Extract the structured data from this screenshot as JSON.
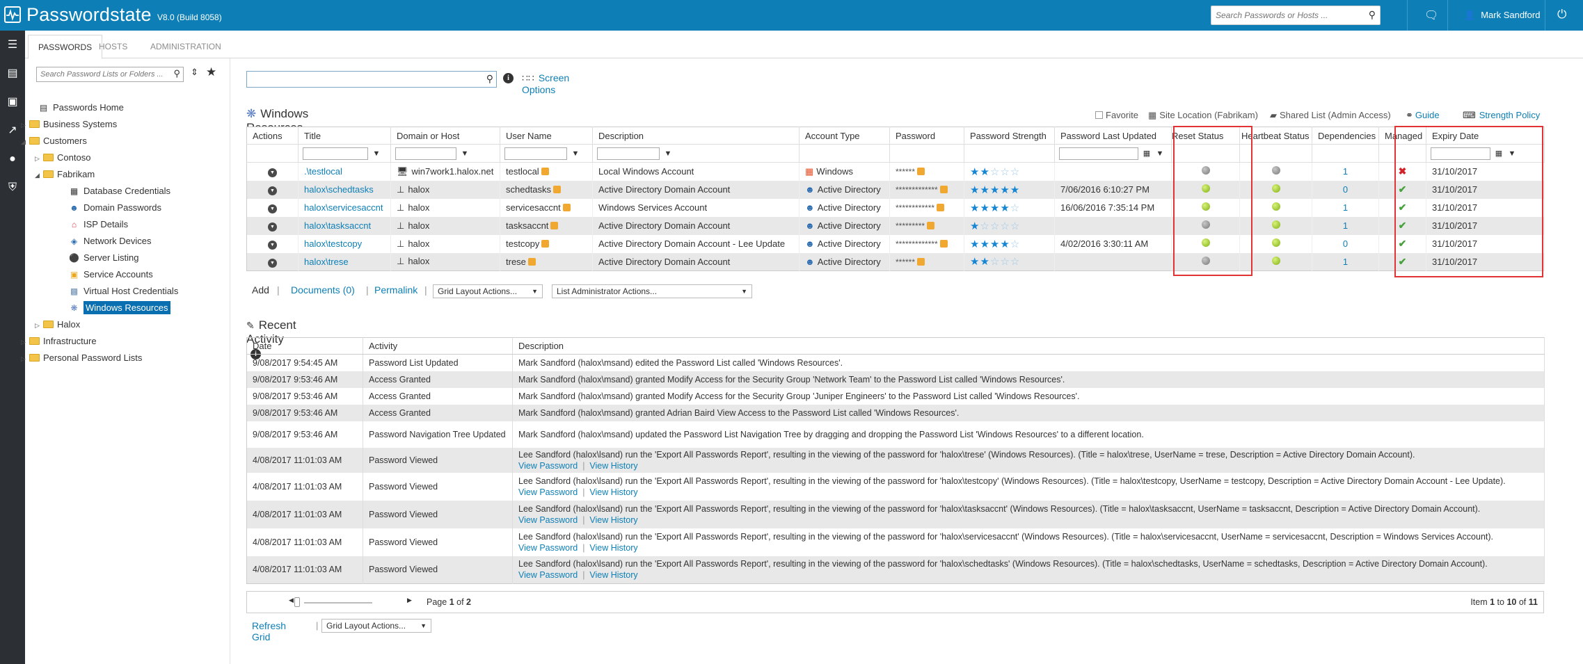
{
  "header": {
    "app_name": "Passwordstate",
    "version": "V8.0 (Build 8058)",
    "search_placeholder": "Search Passwords or Hosts ...",
    "user_name": "Mark Sandford"
  },
  "tabs": [
    "PASSWORDS",
    "HOSTS",
    "ADMINISTRATION"
  ],
  "sidebar": {
    "search_placeholder": "Search Password Lists or Folders ...",
    "tree": [
      {
        "label": "Passwords Home",
        "icon": "home-icon"
      },
      {
        "label": "Business Systems",
        "icon": "folder-icon"
      },
      {
        "label": "Customers",
        "icon": "folder-icon"
      },
      {
        "label": "Contoso",
        "icon": "folder-icon"
      },
      {
        "label": "Fabrikam",
        "icon": "folder-icon"
      },
      {
        "label": "Database Credentials",
        "icon": "database-icon"
      },
      {
        "label": "Domain Passwords",
        "icon": "users-icon"
      },
      {
        "label": "ISP Details",
        "icon": "house-icon"
      },
      {
        "label": "Network Devices",
        "icon": "network-icon"
      },
      {
        "label": "Server Listing",
        "icon": "dell-icon"
      },
      {
        "label": "Service Accounts",
        "icon": "lock-icon"
      },
      {
        "label": "Virtual Host Credentials",
        "icon": "vm-icon"
      },
      {
        "label": "Windows Resources",
        "icon": "windows-resources-icon"
      },
      {
        "label": "Halox",
        "icon": "folder-icon"
      },
      {
        "label": "Infrastructure",
        "icon": "folder-icon"
      },
      {
        "label": "Personal Password Lists",
        "icon": "folder-icon"
      }
    ]
  },
  "main": {
    "screen_options": "Screen Options",
    "list_title": "Windows Resources",
    "favorite": "Favorite",
    "site_location": "Site Location (Fabrikam)",
    "shared_list": "Shared List (Admin Access)",
    "guide": "Guide",
    "strength_policy": "Strength Policy",
    "columns": [
      "Actions",
      "Title",
      "Domain or Host",
      "User Name",
      "Description",
      "Account Type",
      "Password",
      "Password Strength",
      "Password Last Updated",
      "Reset Status",
      "Heartbeat Status",
      "Dependencies",
      "Managed",
      "Expiry Date"
    ],
    "rows": [
      {
        "title": ".\\testlocal",
        "host": "win7work1.halox.net",
        "host_icon": "computer-icon",
        "user": "testlocal",
        "description": "Local Windows Account",
        "account_type": "Windows",
        "account_icon": "windows-icon",
        "password": "******",
        "strength": 2,
        "last_updated": "",
        "reset": "grey",
        "heartbeat": "grey",
        "dependencies": "1",
        "managed": false,
        "expiry": "31/10/2017"
      },
      {
        "title": "halox\\schedtasks",
        "host": "halox",
        "host_icon": "network-icon",
        "user": "schedtasks",
        "description": "Active Directory Domain Account",
        "account_type": "Active Directory",
        "account_icon": "ad-user-icon",
        "password": "*************",
        "strength": 5,
        "last_updated": "7/06/2016 6:10:27 PM",
        "reset": "green",
        "heartbeat": "green",
        "dependencies": "0",
        "managed": true,
        "expiry": "31/10/2017"
      },
      {
        "title": "halox\\servicesaccnt",
        "host": "halox",
        "host_icon": "network-icon",
        "user": "servicesaccnt",
        "description": "Windows Services Account",
        "account_type": "Active Directory",
        "account_icon": "ad-user-icon",
        "password": "************",
        "strength": 4,
        "last_updated": "16/06/2016 7:35:14 PM",
        "reset": "green",
        "heartbeat": "green",
        "dependencies": "1",
        "managed": true,
        "expiry": "31/10/2017"
      },
      {
        "title": "halox\\tasksaccnt",
        "host": "halox",
        "host_icon": "network-icon",
        "user": "tasksaccnt",
        "description": "Active Directory Domain Account",
        "account_type": "Active Directory",
        "account_icon": "ad-user-icon",
        "password": "*********",
        "strength": 1,
        "last_updated": "",
        "reset": "grey",
        "heartbeat": "green",
        "dependencies": "1",
        "managed": true,
        "expiry": "31/10/2017"
      },
      {
        "title": "halox\\testcopy",
        "host": "halox",
        "host_icon": "network-icon",
        "user": "testcopy",
        "description": "Active Directory Domain Account - Lee Update",
        "account_type": "Active Directory",
        "account_icon": "ad-user-icon",
        "password": "*************",
        "strength": 4,
        "last_updated": "4/02/2016 3:30:11 AM",
        "reset": "green",
        "heartbeat": "green",
        "dependencies": "0",
        "managed": true,
        "expiry": "31/10/2017"
      },
      {
        "title": "halox\\trese",
        "host": "halox",
        "host_icon": "network-icon",
        "user": "trese",
        "description": "Active Directory Domain Account",
        "account_type": "Active Directory",
        "account_icon": "ad-user-icon",
        "password": "******",
        "strength": 2,
        "last_updated": "",
        "reset": "grey",
        "heartbeat": "green",
        "dependencies": "1",
        "managed": true,
        "expiry": "31/10/2017"
      }
    ],
    "add": "Add",
    "documents": "Documents (0)",
    "permalink": "Permalink",
    "grid_layout_actions": "Grid Layout Actions...",
    "list_admin_actions": "List Administrator Actions...",
    "colors": {
      "brand": "#0d7fb6",
      "highlight": "#e03333"
    }
  },
  "recent": {
    "title": "Recent Activity",
    "columns": [
      "Date",
      "Activity",
      "Description"
    ],
    "rows": [
      {
        "date": "9/08/2017 9:54:45 AM",
        "activity": "Password List Updated",
        "desc": "Mark Sandford (halox\\msand) edited the Password List called 'Windows Resources'.",
        "links": false
      },
      {
        "date": "9/08/2017 9:53:46 AM",
        "activity": "Access Granted",
        "desc": "Mark Sandford (halox\\msand) granted Modify Access for the Security Group 'Network Team' to the Password List called 'Windows Resources'.",
        "links": false
      },
      {
        "date": "9/08/2017 9:53:46 AM",
        "activity": "Access Granted",
        "desc": "Mark Sandford (halox\\msand) granted Modify Access for the Security Group 'Juniper Engineers' to the Password List called 'Windows Resources'.",
        "links": false
      },
      {
        "date": "9/08/2017 9:53:46 AM",
        "activity": "Access Granted",
        "desc": "Mark Sandford (halox\\msand) granted Adrian Baird View Access to the Password List called 'Windows Resources'.",
        "links": false
      },
      {
        "date": "9/08/2017 9:53:46 AM",
        "activity": "Password Navigation Tree Updated",
        "desc": "Mark Sandford (halox\\msand) updated the Password List Navigation Tree by dragging and dropping the Password List 'Windows Resources' to a different location.",
        "links": false
      },
      {
        "date": "4/08/2017 11:01:03 AM",
        "activity": "Password Viewed",
        "desc": "Lee Sandford (halox\\lsand) run the 'Export All Passwords Report', resulting in the viewing of the password for 'halox\\trese' (Windows Resources). (Title = halox\\trese, UserName = trese, Description = Active Directory Domain Account).",
        "links": true
      },
      {
        "date": "4/08/2017 11:01:03 AM",
        "activity": "Password Viewed",
        "desc": "Lee Sandford (halox\\lsand) run the 'Export All Passwords Report', resulting in the viewing of the password for 'halox\\testcopy' (Windows Resources). (Title = halox\\testcopy, UserName = testcopy, Description = Active Directory Domain Account - Lee Update).",
        "links": true
      },
      {
        "date": "4/08/2017 11:01:03 AM",
        "activity": "Password Viewed",
        "desc": "Lee Sandford (halox\\lsand) run the 'Export All Passwords Report', resulting in the viewing of the password for 'halox\\tasksaccnt' (Windows Resources). (Title = halox\\tasksaccnt, UserName = tasksaccnt, Description = Active Directory Domain Account).",
        "links": true
      },
      {
        "date": "4/08/2017 11:01:03 AM",
        "activity": "Password Viewed",
        "desc": "Lee Sandford (halox\\lsand) run the 'Export All Passwords Report', resulting in the viewing of the password for 'halox\\servicesaccnt' (Windows Resources). (Title = halox\\servicesaccnt, UserName = servicesaccnt, Description = Windows Services Account).",
        "links": true
      },
      {
        "date": "4/08/2017 11:01:03 AM",
        "activity": "Password Viewed",
        "desc": "Lee Sandford (halox\\lsand) run the 'Export All Passwords Report', resulting in the viewing of the password for 'halox\\schedtasks' (Windows Resources). (Title = halox\\schedtasks, UserName = schedtasks, Description = Active Directory Domain Account).",
        "links": true
      }
    ],
    "view_password": "View Password",
    "view_history": "View History",
    "page_label": "Page",
    "page_current": "1",
    "page_of": "of",
    "page_total": "2",
    "item_label": "Item",
    "item_from": "1",
    "item_to_label": "to",
    "item_to": "10",
    "item_total": "11",
    "refresh": "Refresh Grid",
    "grid_layout_actions": "Grid Layout Actions..."
  }
}
